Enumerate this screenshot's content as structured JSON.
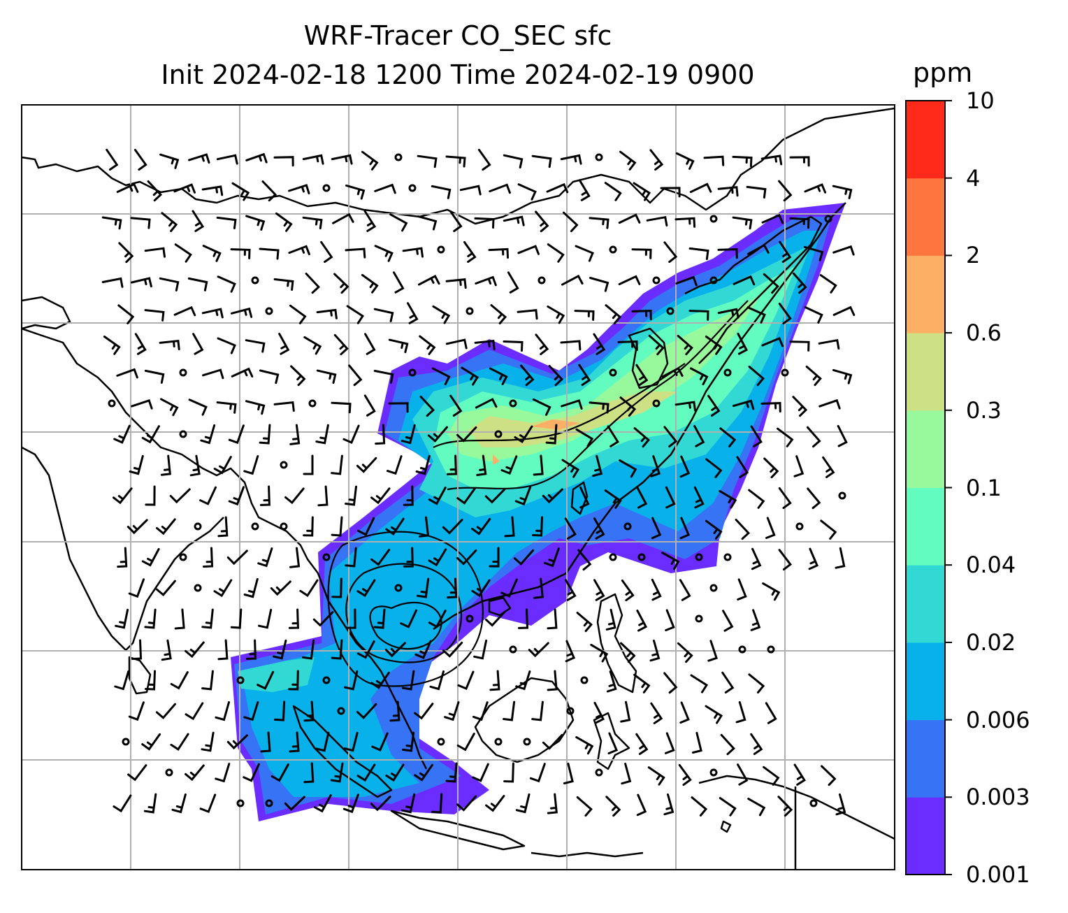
{
  "title": {
    "line1": "WRF-Tracer CO_SEC sfc",
    "line2": "Init 2024-02-18 1200 Time 2024-02-19 0900"
  },
  "colorbar": {
    "unit": "ppm",
    "levels": [
      "0.001",
      "0.003",
      "0.006",
      "0.02",
      "0.04",
      "0.1",
      "0.3",
      "0.6",
      "2",
      "4",
      "10"
    ],
    "colors": [
      "#6a2cff",
      "#3773f5",
      "#08b1ea",
      "#31d8d4",
      "#63fcc0",
      "#98f89c",
      "#cde084",
      "#fdb065",
      "#fd7640",
      "#ff2a19"
    ]
  },
  "map": {
    "background": "#ffffff",
    "gridline_color": "#b0b0b0",
    "coastline_color": "#000000",
    "wind_barb_color": "#000000"
  }
}
